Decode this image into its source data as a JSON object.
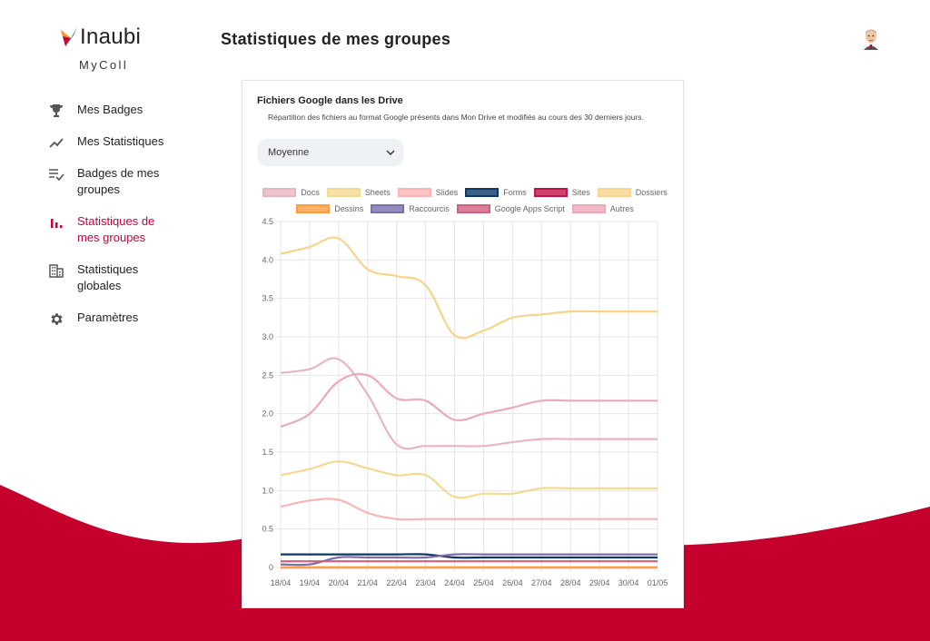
{
  "brand": {
    "logo_text": "Inaubi",
    "app_name": "MyColl"
  },
  "page": {
    "title": "Statistiques de mes groupes"
  },
  "nav": {
    "items": [
      {
        "label": "Mes Badges",
        "icon": "trophy-icon",
        "active": false
      },
      {
        "label": "Mes Statistiques",
        "icon": "trending-up-icon",
        "active": false
      },
      {
        "label": "Badges de mes groupes",
        "icon": "playlist-check-icon",
        "active": false
      },
      {
        "label": "Statistiques de mes groupes",
        "icon": "bar-chart-icon",
        "active": true
      },
      {
        "label": "Statistiques globales",
        "icon": "building-icon",
        "active": false
      },
      {
        "label": "Paramètres",
        "icon": "gear-icon",
        "active": false
      }
    ]
  },
  "colors": {
    "accent": "#c5003e",
    "wave": "#c5002d"
  },
  "card": {
    "title": "Fichiers Google dans les Drive",
    "subtitle": "Répartition des fichiers au format Google présents dans Mon Drive et modifiés au cours des 30 derniers jours.",
    "select": {
      "value": "Moyenne",
      "icon": "chevron-down-icon"
    }
  },
  "chart_data": {
    "type": "line",
    "title": "",
    "xlabel": "",
    "ylabel": "",
    "ylim": [
      0,
      4.5
    ],
    "yticks": [
      "0",
      "0.5",
      "1.0",
      "1.5",
      "2.0",
      "2.5",
      "3.0",
      "3.5",
      "4.0",
      "4.5"
    ],
    "categories": [
      "18/04",
      "19/04",
      "20/04",
      "21/04",
      "22/04",
      "23/04",
      "24/04",
      "25/04",
      "26/04",
      "27/04",
      "28/04",
      "29/04",
      "30/04",
      "01/05"
    ],
    "grid": true,
    "legend_position": "top",
    "series": [
      {
        "name": "Docs",
        "color": "#e8b4c0",
        "values": [
          2.53,
          2.58,
          2.71,
          2.25,
          1.6,
          1.58,
          1.58,
          1.58,
          1.63,
          1.67,
          1.67,
          1.67,
          1.67,
          1.67
        ]
      },
      {
        "name": "Sheets",
        "color": "#f5d990",
        "values": [
          1.2,
          1.28,
          1.38,
          1.29,
          1.2,
          1.2,
          0.92,
          0.96,
          0.96,
          1.03,
          1.03,
          1.03,
          1.03,
          1.03
        ]
      },
      {
        "name": "Slides",
        "color": "#fbb4b4",
        "values": [
          0.79,
          0.87,
          0.88,
          0.71,
          0.63,
          0.63,
          0.63,
          0.63,
          0.63,
          0.63,
          0.63,
          0.63,
          0.63,
          0.63
        ]
      },
      {
        "name": "Forms",
        "color": "#0b3866",
        "values": [
          0.17,
          0.17,
          0.17,
          0.17,
          0.17,
          0.17,
          0.13,
          0.13,
          0.13,
          0.13,
          0.13,
          0.13,
          0.13,
          0.13
        ]
      },
      {
        "name": "Sites",
        "color": "#c2124a",
        "values": [
          0.0,
          0.0,
          0.0,
          0.0,
          0.0,
          0.0,
          0.0,
          0.0,
          0.0,
          0.0,
          0.0,
          0.0,
          0.0,
          0.0
        ]
      },
      {
        "name": "Dossiers",
        "color": "#f7d38b",
        "values": [
          4.08,
          4.17,
          4.28,
          3.88,
          3.79,
          3.67,
          3.02,
          3.08,
          3.25,
          3.29,
          3.33,
          3.33,
          3.33,
          3.33
        ]
      },
      {
        "name": "Dessins",
        "color": "#ff9d3e",
        "values": [
          0.0,
          0.0,
          0.0,
          0.0,
          0.0,
          0.0,
          0.0,
          0.0,
          0.0,
          0.0,
          0.0,
          0.0,
          0.0,
          0.0
        ]
      },
      {
        "name": "Raccourcis",
        "color": "#7b6fae",
        "values": [
          0.04,
          0.04,
          0.13,
          0.13,
          0.13,
          0.13,
          0.17,
          0.17,
          0.17,
          0.17,
          0.17,
          0.17,
          0.17,
          0.17
        ]
      },
      {
        "name": "Google Apps Script",
        "color": "#d0607e",
        "values": [
          0.08,
          0.08,
          0.08,
          0.08,
          0.08,
          0.08,
          0.08,
          0.08,
          0.08,
          0.08,
          0.08,
          0.08,
          0.08,
          0.08
        ]
      },
      {
        "name": "Autres",
        "color": "#ecaab8",
        "values": [
          1.83,
          2.0,
          2.42,
          2.5,
          2.2,
          2.17,
          1.92,
          2.0,
          2.08,
          2.17,
          2.17,
          2.17,
          2.17,
          2.17
        ]
      }
    ]
  }
}
